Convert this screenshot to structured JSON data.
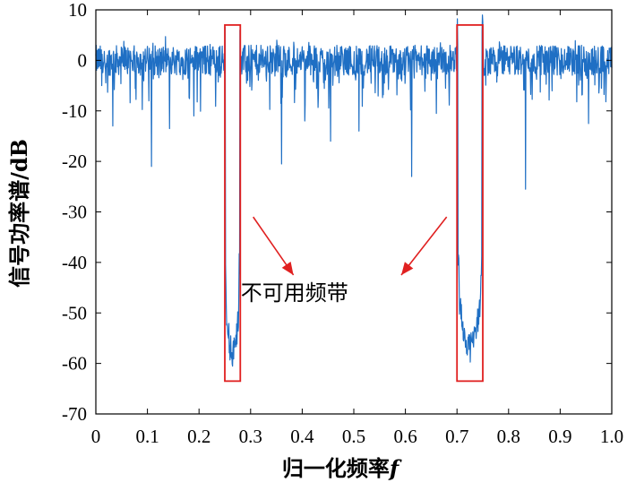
{
  "chart_data": {
    "type": "line",
    "title": "",
    "xlabel": "归一化频率",
    "xlabel_italic": "f",
    "ylabel": "信号功率谱/dB",
    "xlim": [
      0,
      1.0
    ],
    "ylim": [
      -70,
      10
    ],
    "xticks": [
      "0",
      "0.1",
      "0.2",
      "0.3",
      "0.4",
      "0.5",
      "0.6",
      "0.7",
      "0.8",
      "0.9",
      "1.0"
    ],
    "yticks": [
      "10",
      "0",
      "-10",
      "-20",
      "-30",
      "-40",
      "-50",
      "-60",
      "-70"
    ],
    "grid": false,
    "series": [
      {
        "color": "#1f6fc4",
        "noise_level_db": 0,
        "noise_spread_db": 3
      }
    ],
    "dips": [
      {
        "x": 0.108,
        "y": -21
      },
      {
        "x": 0.612,
        "y": -23
      },
      {
        "x": 0.833,
        "y": -25.5
      },
      {
        "x": 0.455,
        "y": -16
      },
      {
        "x": 0.36,
        "y": -20.5
      },
      {
        "x": 0.033,
        "y": -13
      },
      {
        "x": 0.143,
        "y": -13.5
      },
      {
        "x": 0.51,
        "y": -14
      },
      {
        "x": 0.405,
        "y": -12
      },
      {
        "x": 0.955,
        "y": -12.5
      },
      {
        "x": 0.19,
        "y": -11
      },
      {
        "x": 0.66,
        "y": -10.5
      }
    ],
    "unusable_bands": [
      {
        "start": 0.25,
        "end": 0.28,
        "floor_db": -58,
        "box_top_db": 7,
        "box_bottom_db": -63.5
      },
      {
        "start": 0.7,
        "end": 0.75,
        "floor_db": -57,
        "box_top_db": 7,
        "box_bottom_db": -63.5
      }
    ],
    "annotation": {
      "text": "不可用频带",
      "x": 0.385,
      "y": -47.5
    },
    "arrows": [
      {
        "from": [
          0.305,
          -31
        ],
        "to": [
          0.383,
          -42.5
        ]
      },
      {
        "from": [
          0.68,
          -31
        ],
        "to": [
          0.592,
          -42.5
        ]
      }
    ],
    "colors": {
      "line": "#1f6fc4",
      "highlight": "#e02020",
      "arrow": "#e02020"
    }
  }
}
